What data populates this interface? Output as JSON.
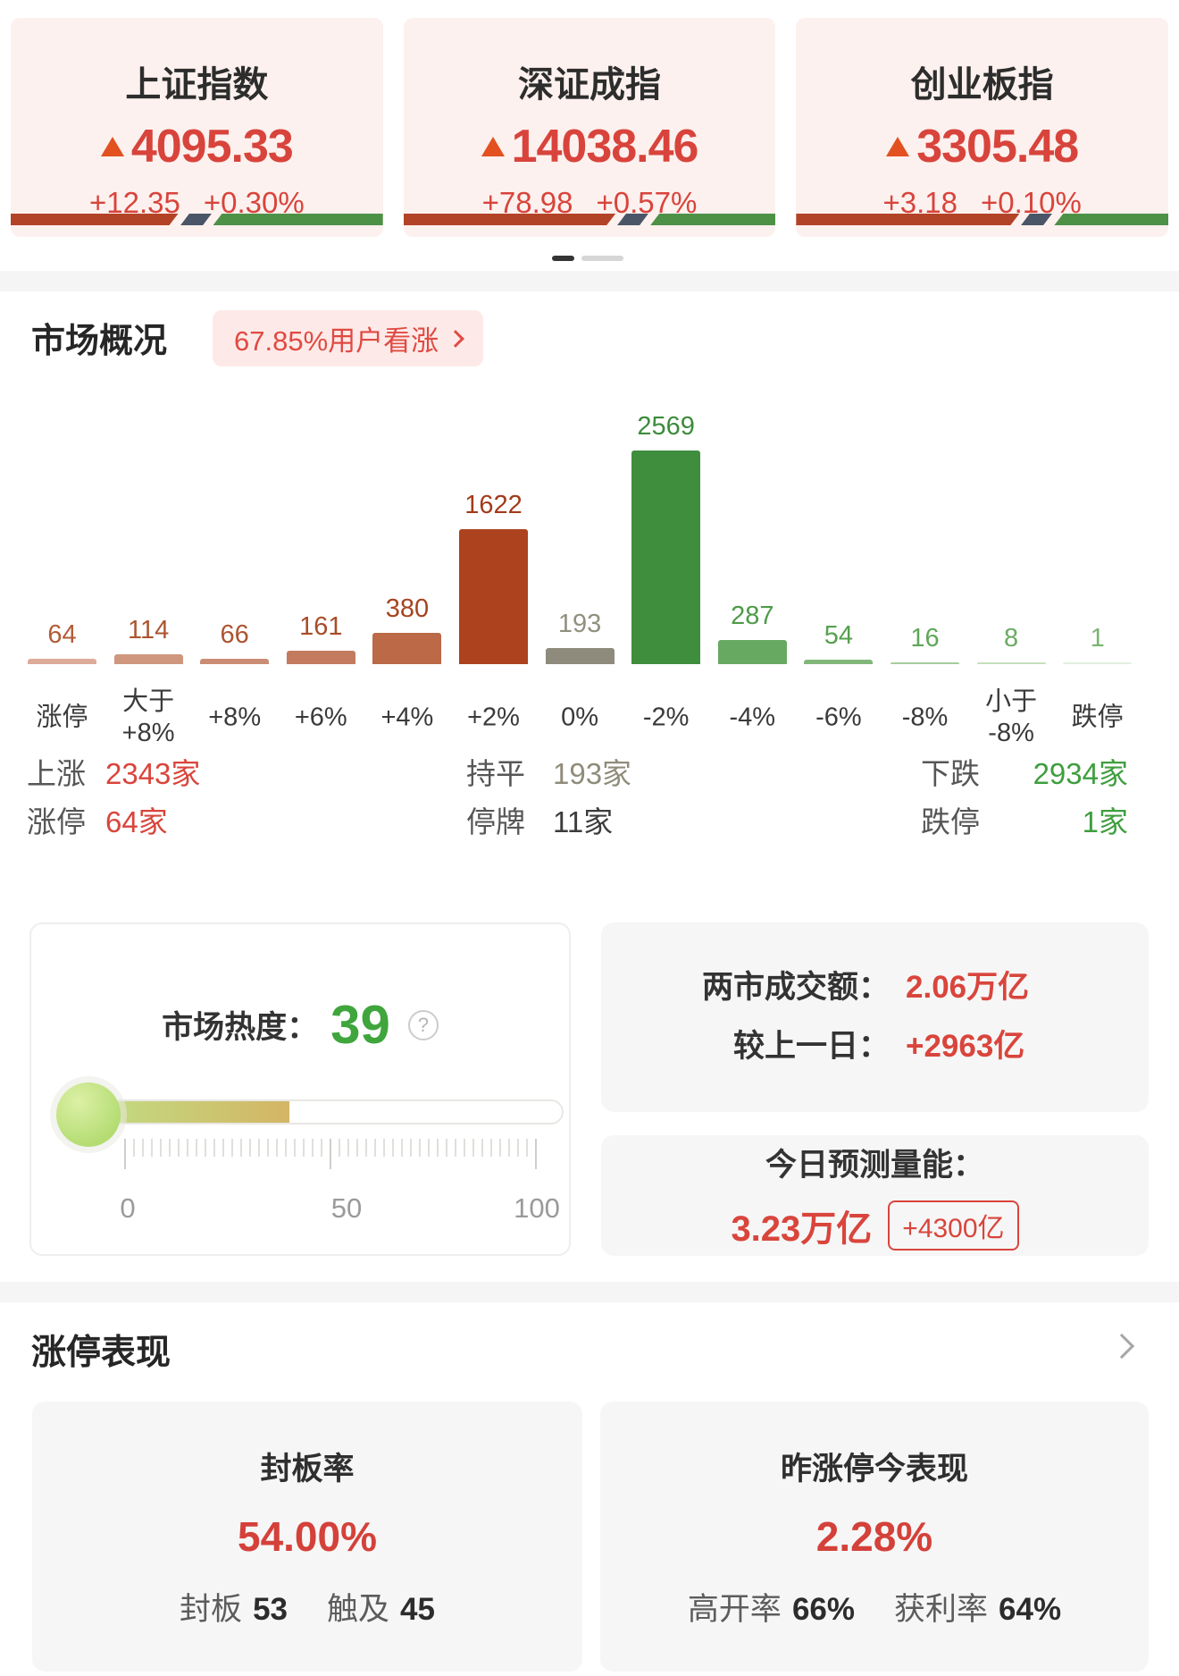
{
  "colors": {
    "red": "#d9453c",
    "green": "#3f9e3f",
    "trend_orange": "#e2511f",
    "breadth_red": "#b34327",
    "breadth_slate": "#4a5568",
    "breadth_green": "#4d9147",
    "card_pink": "#fcf1ee",
    "card_gray": "#f6f6f6"
  },
  "icons": {
    "trend": "up-triangle-icon",
    "badge_arrow": "chevron-right-icon",
    "help": "question-circle-icon",
    "section_arrow": "chevron-right-icon"
  },
  "carousel": {
    "pages": 2,
    "active": 1
  },
  "indices": [
    {
      "name": "上证指数",
      "value": "4095.33",
      "change": "+12.35",
      "change_pct": "+0.30%",
      "breadth_red_pct": 45
    },
    {
      "name": "深证成指",
      "value": "14038.46",
      "change": "+78.98",
      "change_pct": "+0.57%",
      "breadth_red_pct": 57
    },
    {
      "name": "创业板指",
      "value": "3305.48",
      "change": "+3.18",
      "change_pct": "+0.10%",
      "breadth_red_pct": 60
    }
  ],
  "overview": {
    "title": "市场概况",
    "badge_label": "67.85%用户看涨",
    "summary": {
      "up_label": "上涨",
      "up_value": "2343家",
      "flat_label": "持平",
      "flat_value": "193家",
      "down_label": "下跌",
      "down_value": "2934家",
      "limit_up_label": "涨停",
      "limit_up_value": "64家",
      "halt_label": "停牌",
      "halt_value": "11家",
      "limit_down_label": "跌停",
      "limit_down_value": "1家"
    }
  },
  "chart_data": {
    "type": "bar",
    "title": "市场概况涨跌分布",
    "categories": [
      "涨停",
      "大于\n+8%",
      "+8%",
      "+6%",
      "+4%",
      "+2%",
      "0%",
      "-2%",
      "-4%",
      "-6%",
      "-8%",
      "小于\n-8%",
      "跌停"
    ],
    "values": [
      64,
      114,
      66,
      161,
      380,
      1622,
      193,
      2569,
      287,
      54,
      16,
      8,
      1
    ],
    "bar_colors": [
      "#dcab9a",
      "#cf977e",
      "#ca8d74",
      "#c27b5e",
      "#bb6946",
      "#ad421f",
      "#8f8b7c",
      "#3e8e3d",
      "#68a962",
      "#82b77a",
      "#a6cc9c",
      "#c5dfbc",
      "#e3efe0"
    ],
    "label_colors": [
      "#b25c38",
      "#ac5530",
      "#ac5530",
      "#a84d28",
      "#a64420",
      "#a43a1a",
      "#91907e",
      "#3c8c3b",
      "#4f9a49",
      "#55a04e",
      "#5fa759",
      "#6cab63",
      "#79b471"
    ],
    "ylim": [
      0,
      2569
    ],
    "value_labels_shown": true,
    "grid": false,
    "xlabel": "",
    "ylabel": ""
  },
  "heat": {
    "label": "市场热度：",
    "value": "39",
    "percent": 39,
    "help_glyph": "?",
    "scale": [
      "0",
      "50",
      "100"
    ]
  },
  "turnover": {
    "line1_label": "两市成交额：",
    "line1_value": "2.06万亿",
    "line2_label": "较上一日：",
    "line2_value": "+2963亿"
  },
  "forecast": {
    "title": "今日预测量能：",
    "value": "3.23万亿",
    "badge": "+4300亿"
  },
  "limit_up_section": {
    "title": "涨停表现",
    "seal": {
      "title": "封板率",
      "value": "54.00%",
      "stat1_label": "封板",
      "stat1_value": "53",
      "stat2_label": "触及",
      "stat2_value": "45"
    },
    "yesterday": {
      "title": "昨涨停今表现",
      "value": "2.28%",
      "stat1_label": "高开率",
      "stat1_value": "66%",
      "stat2_label": "获利率",
      "stat2_value": "64%"
    }
  }
}
